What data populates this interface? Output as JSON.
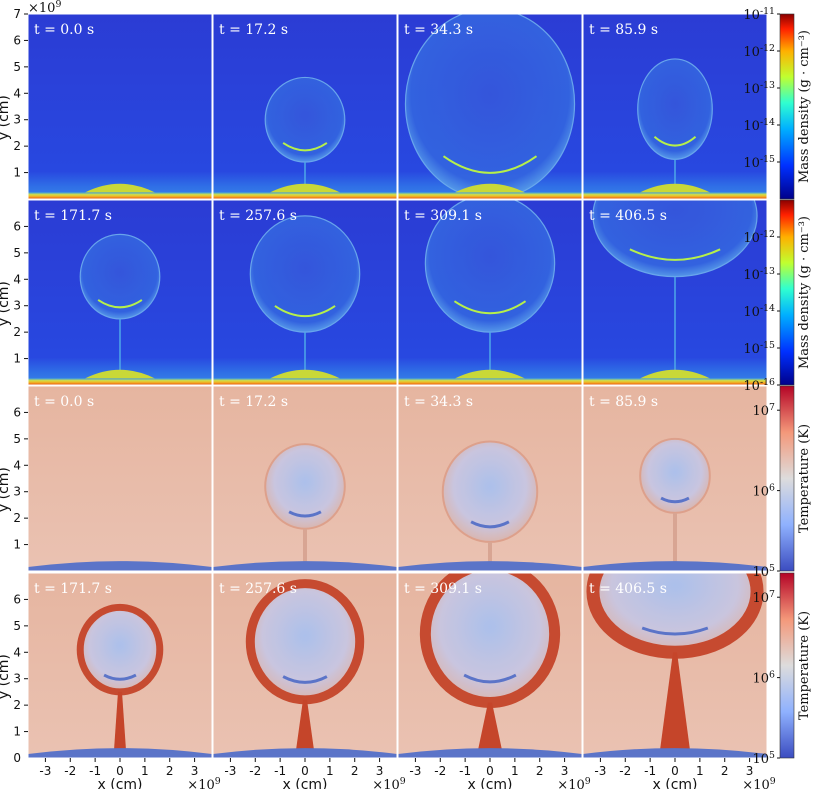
{
  "chart_data": {
    "type": "heatmap",
    "title": "",
    "xlabel": "x  (cm)",
    "ylabel": "y  (cm)",
    "x_multiplier": "×10",
    "x_multiplier_exp": "9",
    "y_multiplier": "×10",
    "y_multiplier_exp": "9",
    "xlim": [
      -3.7,
      3.7
    ],
    "ylim": [
      0,
      7
    ],
    "xticks": [
      -3,
      -2,
      -1,
      0,
      1,
      2,
      3
    ],
    "yticks_top": [
      1,
      2,
      3,
      4,
      5,
      6,
      7
    ],
    "yticks_other": [
      1,
      2,
      3,
      4,
      5,
      6
    ],
    "ytick_zero": "0",
    "grid": false,
    "rows": [
      {
        "quantity": "density",
        "times": [
          "t = 0.0 s",
          "t = 17.2 s",
          "t = 34.3 s",
          "t = 85.9 s"
        ],
        "colorbar": {
          "label": "Mass density (g · cm⁻³)",
          "scale": "log",
          "range": [
            1e-16,
            1e-11
          ],
          "tick_exponents": [
            "-11",
            "-12",
            "-13",
            "-14",
            "-15"
          ]
        }
      },
      {
        "quantity": "density",
        "times": [
          "t = 171.7 s",
          "t = 257.6 s",
          "t = 309.1 s",
          "t = 406.5 s"
        ],
        "colorbar": {
          "label": "Mass density (g · cm⁻³)",
          "scale": "log",
          "range": [
            1e-16,
            1e-11
          ],
          "tick_exponents": [
            "-12",
            "-13",
            "-14",
            "-15",
            "-16"
          ]
        }
      },
      {
        "quantity": "temperature",
        "times": [
          "t = 0.0 s",
          "t = 17.2 s",
          "t = 34.3 s",
          "t = 85.9 s"
        ],
        "colorbar": {
          "label": "Temperature (K)",
          "scale": "log",
          "range": [
            100000.0,
            20000000.0
          ],
          "tick_exponents": [
            "7",
            "6",
            "5"
          ]
        }
      },
      {
        "quantity": "temperature",
        "times": [
          "t = 171.7 s",
          "t = 257.6 s",
          "t = 309.1 s",
          "t = 406.5 s"
        ],
        "colorbar": {
          "label": "Temperature (K)",
          "scale": "log",
          "range": [
            100000.0,
            20000000.0
          ],
          "tick_exponents": [
            "7",
            "6",
            "5"
          ]
        }
      }
    ],
    "tick_base": "10",
    "colors": {
      "density_background": "#2a3fd6",
      "density_floor": "#f6a51a",
      "temperature_background": "#e8b8a4",
      "temperature_cool": "#5b74c8",
      "temperature_hot": "#c5452a"
    }
  }
}
